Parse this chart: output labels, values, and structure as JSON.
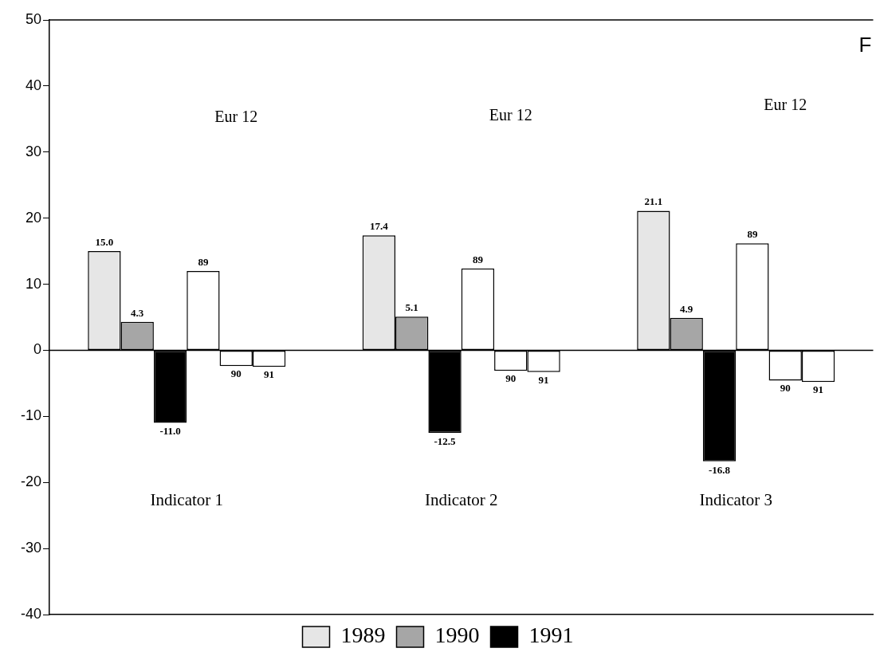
{
  "chart_data": {
    "type": "bar",
    "categories": [
      "Indicator 1",
      "Indicator 2",
      "Indicator 3"
    ],
    "series": [
      {
        "name": "1989",
        "color": "#e6e6e6",
        "values": [
          15.0,
          17.4,
          21.1
        ],
        "value_labels": [
          "15.0",
          "17.4",
          "21.1"
        ]
      },
      {
        "name": "1990",
        "color": "#a6a6a6",
        "values": [
          4.3,
          5.1,
          4.9
        ],
        "value_labels": [
          "4.3",
          "5.1",
          "4.9"
        ]
      },
      {
        "name": "1991",
        "color": "#000000",
        "values": [
          -11.0,
          -12.5,
          -16.8
        ],
        "value_labels": [
          "-11.0",
          "-12.5",
          "-16.8"
        ]
      },
      {
        "name": "89",
        "color": "#ffffff",
        "values": [
          12.0,
          12.4,
          16.2
        ]
      },
      {
        "name": "90",
        "color": "#ffffff",
        "values": [
          -2.4,
          -3.1,
          -4.6
        ]
      },
      {
        "name": "91",
        "color": "#ffffff",
        "values": [
          -2.5,
          -3.3,
          -4.8
        ]
      }
    ],
    "ylim": [
      -40,
      50
    ],
    "yticks": [
      -40,
      -30,
      -20,
      -10,
      0,
      10,
      20,
      30,
      40,
      50
    ],
    "ref_lines": [
      {
        "axis": "y",
        "value": 0
      }
    ],
    "annotations": [
      "Eur 12",
      "Eur 12",
      "Eur 12",
      "F"
    ],
    "grid": false,
    "legend": "bottom"
  }
}
